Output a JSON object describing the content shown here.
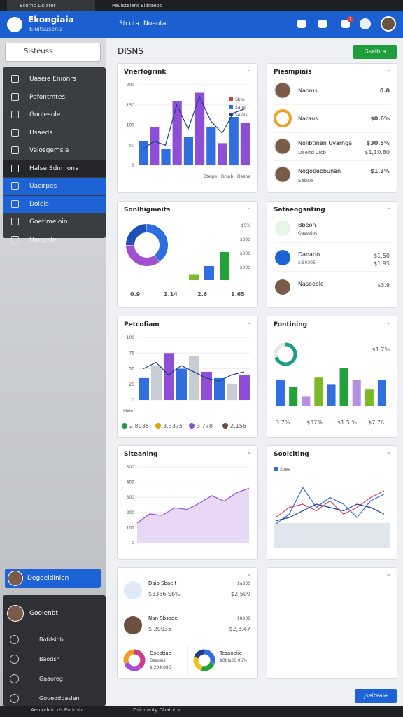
{
  "browser": {
    "tabs": [
      "Ecorno Dsiater",
      "Peulstelent Eldraebs"
    ]
  },
  "header": {
    "title": "Ekongiaia",
    "subtitle": "Eiuitsusenu",
    "nav": [
      "Stcnta",
      "Noenta"
    ],
    "badge": "2"
  },
  "sidebar": {
    "search": "Sisteuss",
    "menu": [
      "Uaseie Enionrs",
      "Pofontmtes",
      "Goolesule",
      "Hsaeds",
      "Velosgemsia",
      "Halse Sdnmona",
      "Uacirpes",
      "Doleis",
      "Goetimeloin",
      "Haogrde"
    ],
    "profile": "Degoeldinlen",
    "user": "Goolenbt",
    "submenu": [
      "Bofdsiob",
      "Baodsh",
      "Gaaoreg",
      "Goueddbaslen"
    ]
  },
  "main": {
    "title": "DISNS",
    "button": "Gseibra",
    "footer_button": "Jseiteaie"
  },
  "taskbar": {
    "left": "Aemodnin ds Eoddsb",
    "center": "Dsionanty Dbaibton"
  },
  "cards": [
    {
      "kind": "bar",
      "title": "Vnerfogrink",
      "ylim": [
        0,
        200
      ],
      "yticks": [
        0,
        50,
        100,
        150,
        200
      ],
      "values": [
        60,
        95,
        40,
        160,
        70,
        180,
        95,
        55,
        120,
        105
      ],
      "colors": [
        "#2f6fe0",
        "#8e4fd6"
      ],
      "line": [
        40,
        60,
        50,
        150,
        90,
        170,
        110,
        80,
        130,
        140
      ],
      "line_color": "#1c3f8f",
      "legend": [
        "Sbte",
        "Sane",
        "Seiois"
      ],
      "legend_colors": [
        "#e03c3c",
        "#2f6fe0",
        "#1c3f8f"
      ],
      "footer": "Bteipe · Brsnb · Desbe"
    },
    {
      "kind": "people",
      "title": "Piesmpiais",
      "items": [
        {
          "name": "Naoms",
          "value": "0.0",
          "color": "#1e9e3a"
        },
        {
          "name": "Naraus",
          "value": "$0,6%",
          "color": "#d23030"
        },
        {
          "name": "Nolibtinen Uvarnga",
          "value": "$30.5%",
          "color": "#1e9e3a",
          "sub": "Daeitd 2lcb",
          "sub_value": "$1,10.80"
        },
        {
          "name": "Nogobebbunan",
          "value": "$1.3%",
          "color": "#1e9e3a",
          "sub": "Sebse"
        }
      ]
    },
    {
      "kind": "donut-bars",
      "title": "Sonlbigmaits",
      "donut": [
        40,
        35,
        25
      ],
      "donut_colors": [
        "#2a6ee0",
        "#a24fd0",
        "#1f4fb8"
      ],
      "bars": [
        15,
        40,
        80
      ],
      "bar_colors": [
        "#7bb927",
        "#2f6fe0",
        "#22a33a"
      ],
      "ylim": [
        0,
        100
      ],
      "side_labels": [
        "$5%",
        "$30b",
        "$30b",
        "$00b"
      ],
      "bottom": [
        "0.9",
        "1.14",
        "2.6",
        "1.65"
      ],
      "bottom_colors": [
        "#1e9e3a",
        "#1e9e3a",
        "#e0a000",
        "#d23030"
      ]
    },
    {
      "kind": "list",
      "title": "Sataeogsnting",
      "items": [
        {
          "label": "Bbeon",
          "sub": "Oasveios"
        },
        {
          "label": "Daoatio",
          "sub": "$.S0305",
          "value": "$1.50",
          "sub_value": "$1.95"
        },
        {
          "label": "Nasoeolc",
          "value": "$3.9"
        }
      ]
    },
    {
      "kind": "bar",
      "title": "Petcofiam",
      "ylim": [
        0,
        100
      ],
      "yticks": [
        0,
        25,
        50,
        75,
        100
      ],
      "values": [
        35,
        55,
        75,
        50,
        70,
        45,
        35,
        25,
        40
      ],
      "colors": [
        "#2f6fe0",
        "#c8ccd4",
        "#8e4fd6"
      ],
      "line": [
        50,
        60,
        40,
        55,
        45,
        35,
        30,
        40,
        45
      ],
      "line_color": "#1c3f8f",
      "xlabel": "Mxie",
      "stats": [
        "2.8035",
        "3.3375",
        "3.778",
        "2.156"
      ],
      "stat_colors": [
        "#1e9e3a",
        "#e0a000",
        "#8e4fd6",
        "#6b4a3a"
      ]
    },
    {
      "kind": "ring-bars",
      "title": "Fontining",
      "ring": 70,
      "ring_label": "$1.7%",
      "values": [
        55,
        40,
        20,
        60,
        45,
        80,
        55,
        35,
        55
      ],
      "colors": [
        "#2f6fe0",
        "#22a33a",
        "#b58fe0",
        "#7bb927"
      ],
      "ylim": [
        0,
        100
      ],
      "stats": [
        "3.7%",
        "$37%",
        "$1 5.%",
        "$7.76"
      ],
      "stat_colors": [
        "#1e9e3a",
        "#1e9e3a",
        "#2f6fe0",
        "#22a33a"
      ]
    },
    {
      "kind": "area",
      "title": "Siteaning",
      "ylim": [
        0,
        500
      ],
      "yticks": [
        0,
        100,
        200,
        300,
        400,
        500
      ],
      "values": [
        130,
        190,
        180,
        230,
        220,
        260,
        310,
        275,
        330,
        360
      ],
      "color": "#9b5bd4"
    },
    {
      "kind": "multiline",
      "title": "Sooiciting",
      "legend": "Sbee",
      "ylim": [
        0,
        100
      ],
      "series": [
        {
          "color": "#2f6fe0",
          "values": [
            30,
            45,
            85,
            55,
            70,
            60,
            40,
            65,
            75
          ]
        },
        {
          "color": "#d0406a",
          "values": [
            40,
            55,
            60,
            50,
            65,
            45,
            55,
            70,
            80
          ]
        },
        {
          "color": "#1c3f8f",
          "values": [
            35,
            40,
            50,
            60,
            55,
            50,
            60,
            55,
            45
          ]
        }
      ]
    },
    {
      "kind": "accounts",
      "items": [
        {
          "name": "Daio Sbaeit",
          "value": "$3386 Sb%",
          "right": "$a830",
          "right2": "$2,509"
        },
        {
          "name": "Nan Sbsade",
          "value": "$ 20035",
          "right": "$8938",
          "right2": "$2,3.47"
        }
      ],
      "donuts": [
        {
          "name": "Gseotiao",
          "sub": "Bssoeis",
          "value": "$ 204.886",
          "values": [
            40,
            30,
            30
          ],
          "colors": [
            "#d03a8a",
            "#a44fd6",
            "#f0a020"
          ]
        },
        {
          "name": "Tesaoeiie",
          "sub": "$0bis36 05%",
          "values": [
            30,
            25,
            25,
            20
          ],
          "colors": [
            "#2f6fe0",
            "#22a33a",
            "#f0c020",
            "#1c3f8f"
          ]
        }
      ]
    },
    {
      "kind": "empty"
    }
  ]
}
